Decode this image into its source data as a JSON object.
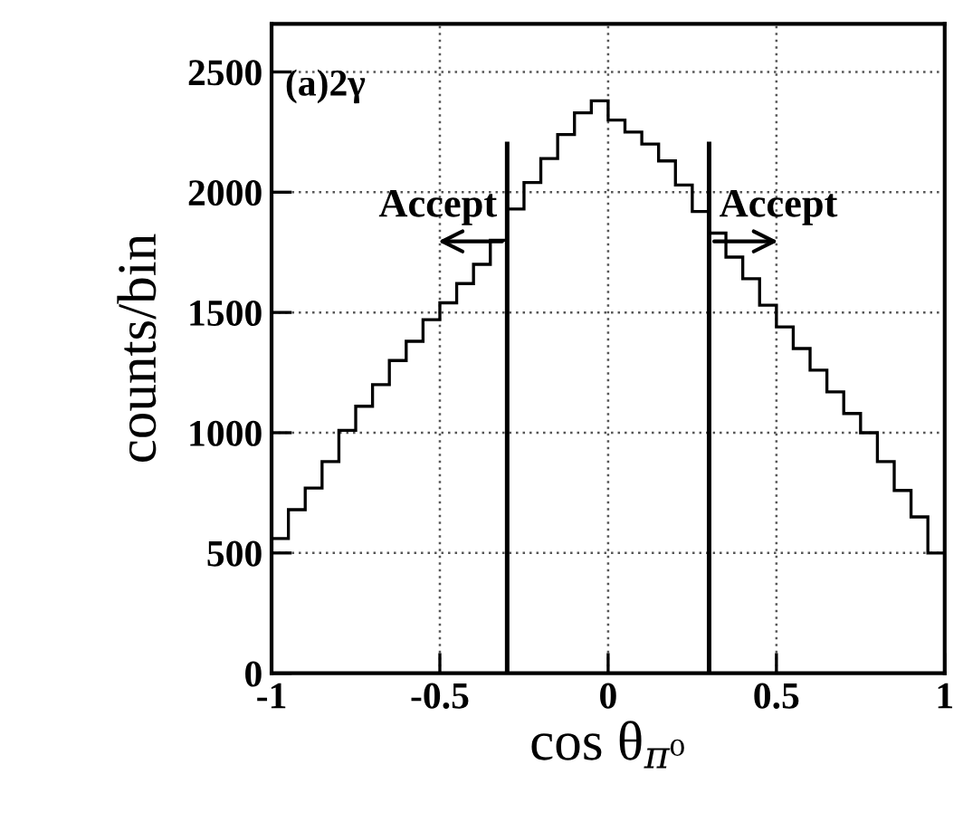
{
  "chart_data": {
    "type": "histogram",
    "xlabel": "cos θ$_{π⁰}$",
    "ylabel": "counts/bin",
    "bins": [
      -1.0,
      -0.95,
      -0.9,
      -0.85,
      -0.8,
      -0.75,
      -0.7,
      -0.65,
      -0.6,
      -0.55,
      -0.5,
      -0.45,
      -0.4,
      -0.35,
      -0.3,
      -0.25,
      -0.2,
      -0.15,
      -0.1,
      -0.05,
      0.0,
      0.05,
      0.1,
      0.15,
      0.2,
      0.25,
      0.3,
      0.35,
      0.4,
      0.45,
      0.5,
      0.55,
      0.6,
      0.65,
      0.7,
      0.75,
      0.8,
      0.85,
      0.9,
      0.95,
      1.0
    ],
    "values": [
      560,
      680,
      770,
      880,
      1010,
      1110,
      1200,
      1300,
      1380,
      1470,
      1540,
      1620,
      1700,
      1800,
      1930,
      2040,
      2140,
      2240,
      2330,
      2380,
      2300,
      2250,
      2200,
      2130,
      2030,
      1920,
      1830,
      1730,
      1640,
      1530,
      1440,
      1350,
      1260,
      1170,
      1080,
      1000,
      880,
      760,
      650,
      500
    ],
    "color": "#000000",
    "xlim": [
      -1,
      1
    ],
    "xticks": [
      -1,
      -0.5,
      0,
      0.5,
      1
    ],
    "ylim": [
      0,
      2700
    ],
    "yticks": [
      0,
      500,
      1000,
      1500,
      2000,
      2500
    ],
    "grid": true,
    "ref_lines": [
      {
        "axis": "x",
        "value": -0.3,
        "color": "#000000"
      },
      {
        "axis": "x",
        "value": 0.3,
        "color": "#000000"
      }
    ],
    "annotations": [
      "(a)2γ",
      "Accept",
      "Accept"
    ]
  }
}
